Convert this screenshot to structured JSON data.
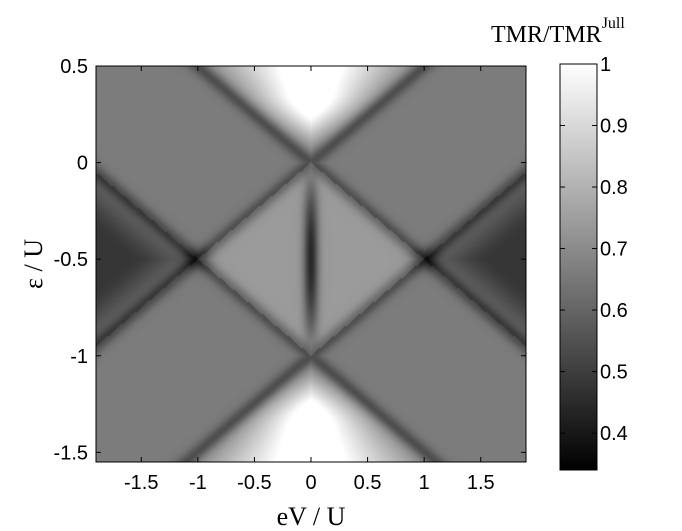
{
  "chart_data": {
    "type": "heatmap",
    "title": "",
    "xlabel": "eV / U",
    "ylabel": "ε / U",
    "xlim": [
      -1.9,
      1.9
    ],
    "ylim": [
      -1.55,
      0.5
    ],
    "x_ticks": [
      -1.5,
      -1,
      -0.5,
      0,
      0.5,
      1,
      1.5
    ],
    "x_tick_labels": [
      "-1.5",
      "-1",
      "-0.5",
      "0",
      "0.5",
      "1",
      "1.5"
    ],
    "y_ticks": [
      0.5,
      0,
      -0.5,
      -1,
      -1.5
    ],
    "y_tick_labels": [
      "0.5",
      "0",
      "-0.5",
      "-1",
      "-1.5"
    ],
    "colorbar": {
      "title_main": "TMR/TMR",
      "title_sup": "Jull",
      "range": [
        0.34,
        1.0
      ],
      "ticks": [
        1,
        0.9,
        0.8,
        0.7,
        0.6,
        0.5,
        0.4
      ],
      "tick_labels": [
        "1",
        "0.9",
        "0.8",
        "0.7",
        "0.6",
        "0.5",
        "0.4"
      ],
      "colormap": "gray"
    },
    "features": {
      "coulomb_diamond_lines": "|eV| = 2|ε + U/2| ... edges at ε = 0 and ε = -U",
      "crossing_points": [
        [
          -1,
          -0.5
        ],
        [
          1,
          -0.5
        ],
        [
          0,
          0
        ],
        [
          0,
          -1
        ]
      ]
    }
  }
}
